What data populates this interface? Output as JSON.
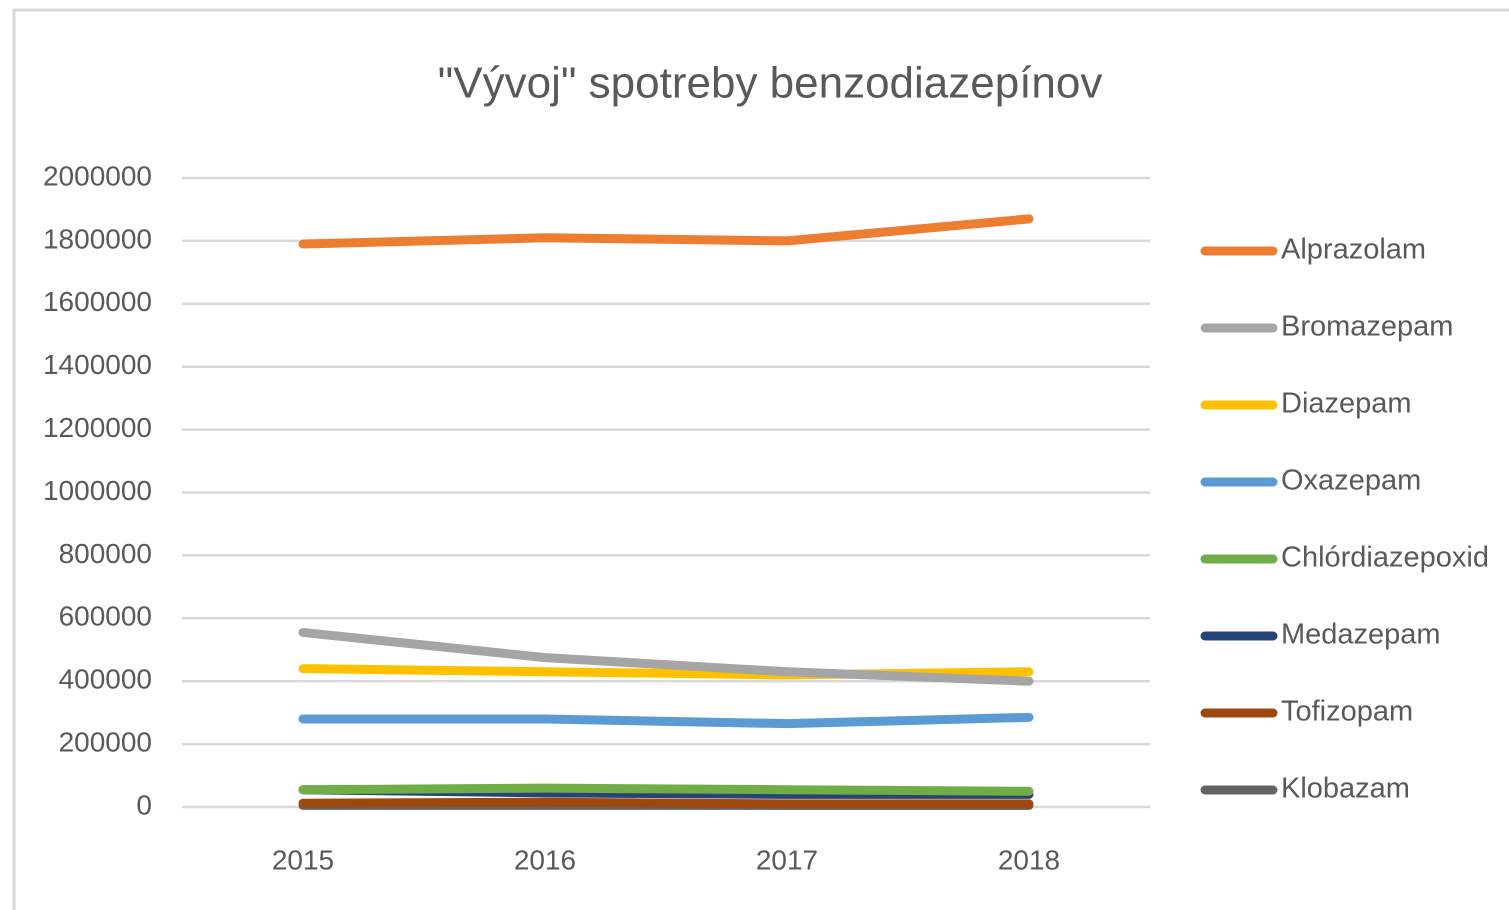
{
  "chart_data": {
    "type": "line",
    "title": "\"Vývoj\" spotreby benzodiazepínov",
    "categories": [
      "2015",
      "2016",
      "2017",
      "2018"
    ],
    "series": [
      {
        "name": "Alprazolam",
        "color": "#ed7d31",
        "values": [
          1790000,
          1810000,
          1800000,
          1870000
        ]
      },
      {
        "name": "Bromazepam",
        "color": "#a5a5a5",
        "values": [
          555000,
          475000,
          430000,
          400000
        ]
      },
      {
        "name": "Diazepam",
        "color": "#ffc000",
        "values": [
          440000,
          430000,
          420000,
          430000
        ]
      },
      {
        "name": "Oxazepam",
        "color": "#5b9bd5",
        "values": [
          280000,
          280000,
          265000,
          285000
        ]
      },
      {
        "name": "Chlórdiazepoxid",
        "color": "#70ad47",
        "values": [
          55000,
          60000,
          55000,
          50000
        ]
      },
      {
        "name": "Medazepam",
        "color": "#264478",
        "values": [
          55000,
          45000,
          40000,
          40000
        ]
      },
      {
        "name": "Tofizopam",
        "color": "#9e480e",
        "values": [
          12000,
          15000,
          10000,
          10000
        ]
      },
      {
        "name": "Klobazam",
        "color": "#636363",
        "values": [
          5000,
          5000,
          5000,
          5000
        ]
      }
    ],
    "ylim": [
      0,
      2000000
    ],
    "yticks": [
      0,
      200000,
      400000,
      600000,
      800000,
      1000000,
      1200000,
      1400000,
      1600000,
      1800000,
      2000000
    ],
    "grid": true,
    "legend": "right"
  }
}
